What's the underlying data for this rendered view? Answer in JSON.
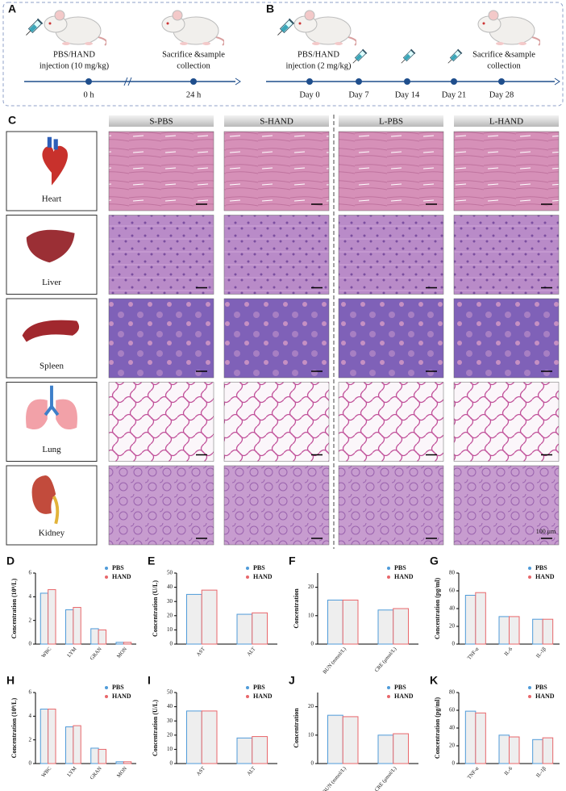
{
  "timeline_a": {
    "panel": "A",
    "event_start": [
      "PBS/HAND",
      "injection (10 mg/kg)"
    ],
    "event_end": [
      "Sacrifice &sample",
      "collection"
    ],
    "ticks": [
      "0 h",
      "24 h"
    ]
  },
  "timeline_b": {
    "panel": "B",
    "event_start": [
      "PBS/HAND",
      "injection (2 mg/kg)"
    ],
    "event_end": [
      "Sacrifice &sample",
      "collection"
    ],
    "ticks": [
      "Day 0",
      "Day 7",
      "Day 14",
      "Day 21",
      "Day 28"
    ]
  },
  "histology": {
    "panel": "C",
    "columns": [
      "S-PBS",
      "S-HAND",
      "L-PBS",
      "L-HAND"
    ],
    "organs": [
      "Heart",
      "Liver",
      "Spleen",
      "Lung",
      "Kidney"
    ],
    "scale_label": "100 μm"
  },
  "chart_data": [
    {
      "type": "bar",
      "panel": "D",
      "ylabel": "Concentration (10⁹/L)",
      "categories": [
        "WBC",
        "LYM",
        "GRAN",
        "MON"
      ],
      "series": [
        {
          "name": "PBS",
          "color": "#4f9bd9",
          "values": [
            4.3,
            2.9,
            1.3,
            0.15
          ]
        },
        {
          "name": "HAND",
          "color": "#e8676b",
          "values": [
            4.6,
            3.1,
            1.2,
            0.15
          ]
        }
      ],
      "ylim": [
        0,
        6
      ],
      "yticks": [
        0,
        2,
        4,
        6
      ]
    },
    {
      "type": "bar",
      "panel": "E",
      "ylabel": "Concentration (U/L)",
      "categories": [
        "AST",
        "ALT"
      ],
      "series": [
        {
          "name": "PBS",
          "color": "#4f9bd9",
          "values": [
            35,
            21
          ]
        },
        {
          "name": "HAND",
          "color": "#e8676b",
          "values": [
            38,
            22
          ]
        }
      ],
      "ylim": [
        0,
        50
      ],
      "yticks": [
        0,
        10,
        20,
        30,
        40,
        50
      ]
    },
    {
      "type": "bar",
      "panel": "F",
      "ylabel": "Concentration",
      "categories": [
        "BUN (mmol/L)",
        "CRE (μmol/L)"
      ],
      "series": [
        {
          "name": "PBS",
          "color": "#4f9bd9",
          "values": [
            15.5,
            12
          ]
        },
        {
          "name": "HAND",
          "color": "#e8676b",
          "values": [
            15.5,
            12.5
          ]
        }
      ],
      "ylim": [
        0,
        25
      ],
      "yticks": [
        0,
        10,
        20
      ]
    },
    {
      "type": "bar",
      "panel": "G",
      "ylabel": "Concentration (pg/ml)",
      "categories": [
        "TNF-α",
        "IL-6",
        "IL-1β"
      ],
      "series": [
        {
          "name": "PBS",
          "color": "#4f9bd9",
          "values": [
            55,
            31,
            28
          ]
        },
        {
          "name": "HAND",
          "color": "#e8676b",
          "values": [
            58,
            31,
            28
          ]
        }
      ],
      "ylim": [
        0,
        80
      ],
      "yticks": [
        0,
        20,
        40,
        60,
        80
      ]
    },
    {
      "type": "bar",
      "panel": "H",
      "ylabel": "Concentration (10⁹/L)",
      "categories": [
        "WBC",
        "LYM",
        "GRAN",
        "MON"
      ],
      "series": [
        {
          "name": "PBS",
          "color": "#4f9bd9",
          "values": [
            4.6,
            3.1,
            1.3,
            0.15
          ]
        },
        {
          "name": "HAND",
          "color": "#e8676b",
          "values": [
            4.6,
            3.2,
            1.2,
            0.15
          ]
        }
      ],
      "ylim": [
        0,
        6
      ],
      "yticks": [
        0,
        2,
        4,
        6
      ]
    },
    {
      "type": "bar",
      "panel": "I",
      "ylabel": "Concentration (U/L)",
      "categories": [
        "AST",
        "ALT"
      ],
      "series": [
        {
          "name": "PBS",
          "color": "#4f9bd9",
          "values": [
            37,
            18
          ]
        },
        {
          "name": "HAND",
          "color": "#e8676b",
          "values": [
            37,
            19
          ]
        }
      ],
      "ylim": [
        0,
        50
      ],
      "yticks": [
        0,
        10,
        20,
        30,
        40,
        50
      ]
    },
    {
      "type": "bar",
      "panel": "J",
      "ylabel": "Concentration",
      "categories": [
        "BUN (mmol/L)",
        "CRE (μmol/L)"
      ],
      "series": [
        {
          "name": "PBS",
          "color": "#4f9bd9",
          "values": [
            17,
            10
          ]
        },
        {
          "name": "HAND",
          "color": "#e8676b",
          "values": [
            16.5,
            10.5
          ]
        }
      ],
      "ylim": [
        0,
        25
      ],
      "yticks": [
        0,
        10,
        20
      ]
    },
    {
      "type": "bar",
      "panel": "K",
      "ylabel": "Concentration (pg/ml)",
      "categories": [
        "TNF-α",
        "IL-6",
        "IL-1β"
      ],
      "series": [
        {
          "name": "PBS",
          "color": "#4f9bd9",
          "values": [
            59,
            32,
            27
          ]
        },
        {
          "name": "HAND",
          "color": "#e8676b",
          "values": [
            57,
            30,
            29
          ]
        }
      ],
      "ylim": [
        0,
        80
      ],
      "yticks": [
        0,
        20,
        40,
        60,
        80
      ]
    }
  ]
}
